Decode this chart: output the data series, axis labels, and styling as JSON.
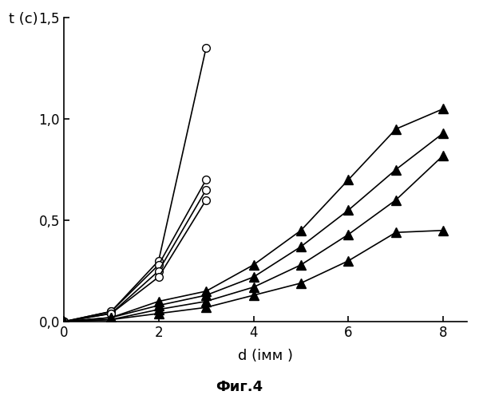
{
  "title": "",
  "xlabel": "d (імм )",
  "ylabel": "t (с)",
  "figure_caption": "Фиг.4",
  "xlim": [
    0,
    8.5
  ],
  "ylim": [
    0,
    1.5
  ],
  "xticks": [
    0,
    2,
    4,
    6,
    8
  ],
  "yticks": [
    0.0,
    0.5,
    1.0,
    1.5
  ],
  "ytick_labels": [
    "0,0",
    "0,5",
    "1,0",
    "1,5"
  ],
  "ytick_labels_extra": [
    "0,0",
    "0,5",
    "1,0",
    "1,5"
  ],
  "background_color": "#ffffff",
  "circle_series": [
    {
      "x": [
        0,
        1,
        2,
        3
      ],
      "y": [
        0,
        0.05,
        0.3,
        1.35
      ]
    },
    {
      "x": [
        0,
        1,
        2,
        3
      ],
      "y": [
        0,
        0.05,
        0.28,
        0.7
      ]
    },
    {
      "x": [
        0,
        1,
        2,
        3
      ],
      "y": [
        0,
        0.04,
        0.25,
        0.65
      ]
    },
    {
      "x": [
        0,
        1,
        2,
        3
      ],
      "y": [
        0,
        0.04,
        0.22,
        0.6
      ]
    }
  ],
  "triangle_series": [
    {
      "x": [
        0,
        1,
        2,
        3,
        4,
        5,
        6,
        7,
        8
      ],
      "y": [
        0,
        0.02,
        0.1,
        0.15,
        0.28,
        0.45,
        0.7,
        0.95,
        1.05
      ]
    },
    {
      "x": [
        0,
        1,
        2,
        3,
        4,
        5,
        6,
        7,
        8
      ],
      "y": [
        0,
        0.02,
        0.08,
        0.13,
        0.22,
        0.37,
        0.55,
        0.75,
        0.93
      ]
    },
    {
      "x": [
        0,
        1,
        2,
        3,
        4,
        5,
        6,
        7,
        8
      ],
      "y": [
        0,
        0.01,
        0.06,
        0.1,
        0.17,
        0.28,
        0.43,
        0.6,
        0.82
      ]
    },
    {
      "x": [
        0,
        1,
        2,
        3,
        4,
        5,
        6,
        7,
        8
      ],
      "y": [
        0,
        0.01,
        0.04,
        0.07,
        0.13,
        0.19,
        0.3,
        0.44,
        0.45
      ]
    }
  ],
  "line_color": "#000000",
  "marker_circle": "o",
  "marker_triangle": "^",
  "markersize_circle": 7,
  "markersize_triangle": 8,
  "linewidth": 1.2,
  "markerfacecolor_circle": "white",
  "markerfacecolor_triangle": "black"
}
